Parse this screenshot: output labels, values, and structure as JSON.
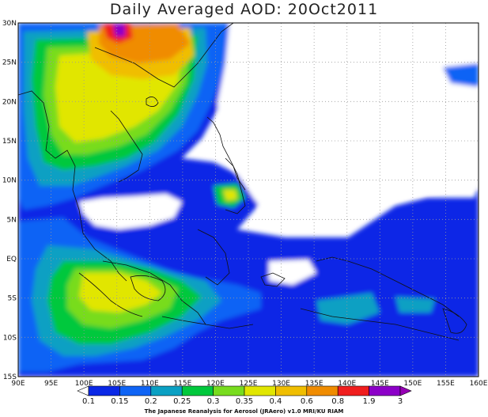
{
  "title": "Daily Averaged AOD: 20Oct2011",
  "credit": "The Japanese Reanalysis for Aerosol (JRAero) v1.0 MRI/KU RIAM",
  "map": {
    "lon_range": [
      90,
      160
    ],
    "lat_range": [
      -15,
      30
    ],
    "lon_ticks": [
      "90E",
      "95E",
      "100E",
      "105E",
      "110E",
      "115E",
      "120E",
      "125E",
      "130E",
      "135E",
      "140E",
      "145E",
      "150E",
      "155E",
      "160E"
    ],
    "lat_ticks": [
      "30N",
      "25N",
      "20N",
      "15N",
      "10N",
      "5N",
      "EQ",
      "5S",
      "10S",
      "15S"
    ],
    "gridlines": "dotted"
  },
  "colorbar": {
    "levels": [
      "0.1",
      "0.15",
      "0.2",
      "0.25",
      "0.3",
      "0.35",
      "0.4",
      "0.6",
      "0.8",
      "1.9",
      "3"
    ],
    "colors": [
      "#ffffff",
      "#0a28e6",
      "#0f64f5",
      "#0aa0c3",
      "#00c83c",
      "#78dc1e",
      "#e1e600",
      "#f0be00",
      "#f08c00",
      "#f01e1e",
      "#8c00c8",
      "#9600b4"
    ]
  }
}
